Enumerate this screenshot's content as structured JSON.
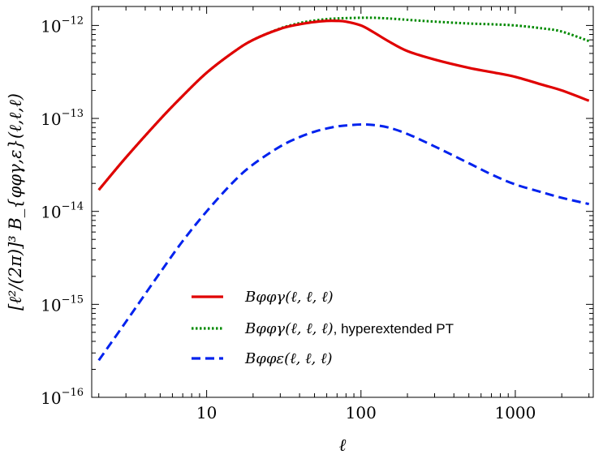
{
  "chart_data": {
    "type": "line",
    "xscale": "log",
    "yscale": "log",
    "xlim": [
      1.8,
      3200
    ],
    "ylim": [
      1e-16,
      1.6e-12
    ],
    "xlabel": "ℓ",
    "ylabel": "[ℓ²/(2π)]³ B_{φφγ,ε}(ℓ,ℓ,ℓ)",
    "xticks": [
      10,
      100,
      1000
    ],
    "xtick_labels": [
      "10",
      "100",
      "1000"
    ],
    "yticks": [
      1e-16,
      1e-15,
      1e-14,
      1e-13,
      1e-12
    ],
    "ytick_labels": [
      {
        "base": "10",
        "exp": "−16"
      },
      {
        "base": "10",
        "exp": "−15"
      },
      {
        "base": "10",
        "exp": "−14"
      },
      {
        "base": "10",
        "exp": "−13"
      },
      {
        "base": "10",
        "exp": "−12"
      }
    ],
    "legend_position": "lower-center",
    "x": [
      2,
      3,
      5,
      7,
      10,
      15,
      20,
      30,
      40,
      50,
      60,
      70,
      80,
      100,
      120,
      150,
      200,
      300,
      500,
      700,
      1000,
      1500,
      2000,
      3000
    ],
    "series": [
      {
        "name": "B_φφγ(ℓ,ℓ,ℓ)",
        "legend_main": "Bφφγ(ℓ, ℓ, ℓ)",
        "legend_suffix": "",
        "color": "#e00000",
        "style": "solid",
        "values": [
          1.7e-14,
          3.8e-14,
          9.8e-14,
          1.75e-13,
          3.1e-13,
          5.2e-13,
          7e-13,
          9.2e-13,
          1.03e-12,
          1.09e-12,
          1.12e-12,
          1.12e-12,
          1.1e-12,
          1e-12,
          8.5e-13,
          6.8e-13,
          5.3e-13,
          4.3e-13,
          3.5e-13,
          3.15e-13,
          2.8e-13,
          2.3e-13,
          2e-13,
          1.55e-13
        ]
      },
      {
        "name": "B_φφγ(ℓ,ℓ,ℓ), hyperextended PT",
        "legend_main": "Bφφγ(ℓ, ℓ, ℓ)",
        "legend_suffix": ", hyperextended PT",
        "color": "#008a00",
        "style": "dotted",
        "values": [
          1.7e-14,
          3.8e-14,
          9.8e-14,
          1.75e-13,
          3.1e-13,
          5.2e-13,
          7e-13,
          9.3e-13,
          1.06e-12,
          1.13e-12,
          1.17e-12,
          1.19e-12,
          1.2e-12,
          1.21e-12,
          1.21e-12,
          1.19e-12,
          1.15e-12,
          1.1e-12,
          1.05e-12,
          1.03e-12,
          1e-12,
          9.3e-13,
          8.6e-13,
          6.8e-13
        ]
      },
      {
        "name": "B_φφε(ℓ,ℓ,ℓ)",
        "legend_main": "Bφφε(ℓ, ℓ, ℓ)",
        "legend_suffix": "",
        "color": "#0022ee",
        "style": "dashed",
        "values": [
          2.5e-16,
          6.5e-16,
          2.2e-15,
          4.8e-15,
          1e-14,
          2.1e-14,
          3.2e-14,
          5e-14,
          6.3e-14,
          7.2e-14,
          7.8e-14,
          8.2e-14,
          8.4e-14,
          8.6e-14,
          8.5e-14,
          8e-14,
          6.8e-14,
          5e-14,
          3.3e-14,
          2.5e-14,
          1.95e-14,
          1.6e-14,
          1.4e-14,
          1.2e-14
        ]
      }
    ]
  }
}
